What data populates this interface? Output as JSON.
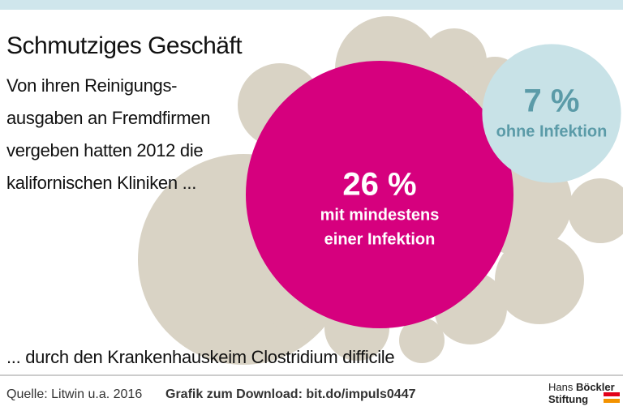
{
  "chart_data": {
    "type": "bubble",
    "title": "Schmutziges Geschäft",
    "subtitle": "Von ihren Reinigungs-ausgaben an Fremdfirmen vergeben hatten 2012 die kalifornischen Kliniken ...",
    "categories": [
      "mit mindestens einer Infektion",
      "ohne Infektion"
    ],
    "values": [
      26,
      7
    ],
    "value_labels": [
      "26 %",
      "7 %"
    ],
    "colors": [
      "#d6007e",
      "#c8e2e7"
    ],
    "label_colors": [
      "#ffffff",
      "#5b9ba8"
    ],
    "footnote": "... durch den Krankenhauskeim Clostridium difficile",
    "source": "Quelle: Litwin u.a. 2016",
    "download": "Grafik zum Download: bit.do/impuls0447",
    "logo": [
      "Hans",
      "Böckler",
      "Stiftung"
    ]
  }
}
